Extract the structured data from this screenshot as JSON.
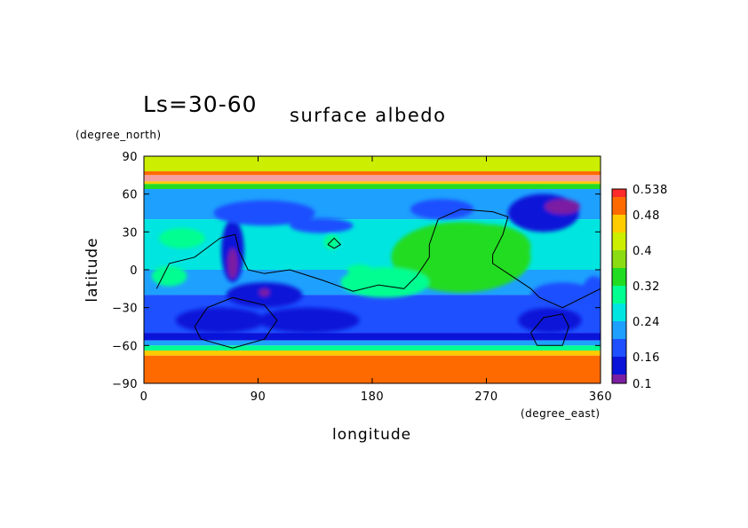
{
  "chart_data": {
    "type": "heatmap",
    "title": "surface albedo",
    "subtitle": "Ls=30-60",
    "xlabel": "longitude",
    "ylabel": "latitude",
    "x_units": "(degree_east)",
    "y_units": "(degree_north)",
    "xlim": [
      0,
      360
    ],
    "ylim": [
      -90,
      90
    ],
    "x_ticks": [
      0,
      90,
      180,
      270,
      360
    ],
    "y_ticks": [
      -90,
      -60,
      -30,
      0,
      30,
      60,
      90
    ],
    "x_tick_labels": [
      "0",
      "90",
      "180",
      "270",
      "360"
    ],
    "y_tick_labels": [
      "−90",
      "−60",
      "−30",
      "0",
      "30",
      "60",
      "90"
    ],
    "colorbar": {
      "levels": [
        0.1,
        0.12,
        0.16,
        0.2,
        0.24,
        0.28,
        0.32,
        0.36,
        0.4,
        0.44,
        0.48,
        0.52,
        0.538
      ],
      "tick_labels": [
        "0.538",
        "0.48",
        "0.4",
        "0.32",
        "0.24",
        "0.16",
        "0.1"
      ],
      "tick_values": [
        0.538,
        0.48,
        0.4,
        0.32,
        0.24,
        0.16,
        0.1
      ],
      "colors": [
        "#7b1fa2",
        "#0a14d8",
        "#1e50ff",
        "#1ea0ff",
        "#00e5e0",
        "#00ff90",
        "#22dc22",
        "#8cdc14",
        "#ccee00",
        "#ffcc00",
        "#ff6a00",
        "#ff2a2a",
        "#f4a0a0"
      ]
    },
    "latitude_bands": [
      {
        "lat_range": [
          78,
          90
        ],
        "value": 0.4
      },
      {
        "lat_range": [
          75,
          78
        ],
        "value": 0.48
      },
      {
        "lat_range": [
          70,
          75
        ],
        "value": 0.538
      },
      {
        "lat_range": [
          68,
          70
        ],
        "value": 0.44
      },
      {
        "lat_range": [
          64,
          68
        ],
        "value": 0.32
      },
      {
        "lat_range": [
          40,
          64
        ],
        "value": 0.2
      },
      {
        "lat_range": [
          0,
          40
        ],
        "value": 0.24
      },
      {
        "lat_range": [
          -20,
          0
        ],
        "value": 0.2
      },
      {
        "lat_range": [
          -50,
          -20
        ],
        "value": 0.16
      },
      {
        "lat_range": [
          -56,
          -50
        ],
        "value": 0.12
      },
      {
        "lat_range": [
          -60,
          -56
        ],
        "value": 0.2
      },
      {
        "lat_range": [
          -64,
          -60
        ],
        "value": 0.28
      },
      {
        "lat_range": [
          -68,
          -64
        ],
        "value": 0.44
      },
      {
        "lat_range": [
          -90,
          -68
        ],
        "value": 0.48
      }
    ],
    "regions": [
      {
        "lon": 250,
        "lat": 10,
        "rx": 55,
        "ry": 28,
        "value": 0.32
      },
      {
        "lon": 270,
        "lat": 18,
        "rx": 35,
        "ry": 18,
        "value": 0.32
      },
      {
        "lon": 190,
        "lat": -10,
        "rx": 35,
        "ry": 12,
        "value": 0.28
      },
      {
        "lon": 30,
        "lat": 25,
        "rx": 18,
        "ry": 8,
        "value": 0.28
      },
      {
        "lon": 148,
        "lat": 22,
        "rx": 6,
        "ry": 6,
        "value": 0.28
      },
      {
        "lon": 170,
        "lat": 0,
        "rx": 10,
        "ry": 4,
        "value": 0.28
      },
      {
        "lon": 20,
        "lat": -5,
        "rx": 14,
        "ry": 8,
        "value": 0.28
      },
      {
        "lon": 315,
        "lat": 45,
        "rx": 28,
        "ry": 15,
        "value": 0.12
      },
      {
        "lon": 330,
        "lat": 50,
        "rx": 14,
        "ry": 6,
        "value": 0.1
      },
      {
        "lon": 70,
        "lat": 15,
        "rx": 9,
        "ry": 25,
        "value": 0.12
      },
      {
        "lon": 70,
        "lat": 5,
        "rx": 4,
        "ry": 12,
        "value": 0.1
      },
      {
        "lon": 95,
        "lat": 45,
        "rx": 40,
        "ry": 10,
        "value": 0.16
      },
      {
        "lon": 140,
        "lat": 35,
        "rx": 25,
        "ry": 6,
        "value": 0.16
      },
      {
        "lon": 235,
        "lat": 48,
        "rx": 25,
        "ry": 8,
        "value": 0.16
      },
      {
        "lon": 95,
        "lat": -20,
        "rx": 30,
        "ry": 10,
        "value": 0.12
      },
      {
        "lon": 60,
        "lat": -40,
        "rx": 35,
        "ry": 10,
        "value": 0.12
      },
      {
        "lon": 320,
        "lat": -40,
        "rx": 25,
        "ry": 10,
        "value": 0.12
      },
      {
        "lon": 95,
        "lat": -18,
        "rx": 4,
        "ry": 3,
        "value": 0.1
      },
      {
        "lon": 130,
        "lat": -40,
        "rx": 40,
        "ry": 10,
        "value": 0.12
      },
      {
        "lon": 330,
        "lat": -20,
        "rx": 25,
        "ry": 10,
        "value": 0.16
      },
      {
        "lon": 355,
        "lat": -20,
        "rx": 10,
        "ry": 15,
        "value": 0.16
      }
    ],
    "contours": [
      [
        [
          10,
          -15
        ],
        [
          20,
          5
        ],
        [
          40,
          10
        ],
        [
          60,
          25
        ],
        [
          72,
          28
        ],
        [
          75,
          15
        ],
        [
          82,
          0
        ],
        [
          95,
          -3
        ],
        [
          115,
          0
        ],
        [
          140,
          -8
        ],
        [
          165,
          -17
        ],
        [
          185,
          -12
        ],
        [
          205,
          -15
        ],
        [
          215,
          -5
        ],
        [
          225,
          10
        ],
        [
          225,
          20
        ],
        [
          232,
          40
        ],
        [
          250,
          48
        ],
        [
          275,
          46
        ],
        [
          287,
          42
        ],
        [
          283,
          28
        ],
        [
          275,
          12
        ],
        [
          275,
          5
        ],
        [
          290,
          -5
        ],
        [
          305,
          -15
        ],
        [
          312,
          -22
        ],
        [
          330,
          -30
        ],
        [
          360,
          -15
        ]
      ],
      [
        [
          145,
          20
        ],
        [
          150,
          25
        ],
        [
          155,
          20
        ],
        [
          150,
          17
        ],
        [
          145,
          20
        ]
      ],
      [
        [
          40,
          -45
        ],
        [
          50,
          -30
        ],
        [
          70,
          -22
        ],
        [
          95,
          -28
        ],
        [
          105,
          -40
        ],
        [
          95,
          -55
        ],
        [
          70,
          -62
        ],
        [
          45,
          -55
        ],
        [
          40,
          -45
        ]
      ],
      [
        [
          305,
          -50
        ],
        [
          315,
          -38
        ],
        [
          330,
          -35
        ],
        [
          335,
          -45
        ],
        [
          330,
          -60
        ],
        [
          310,
          -60
        ],
        [
          305,
          -50
        ]
      ]
    ],
    "grid": false
  }
}
